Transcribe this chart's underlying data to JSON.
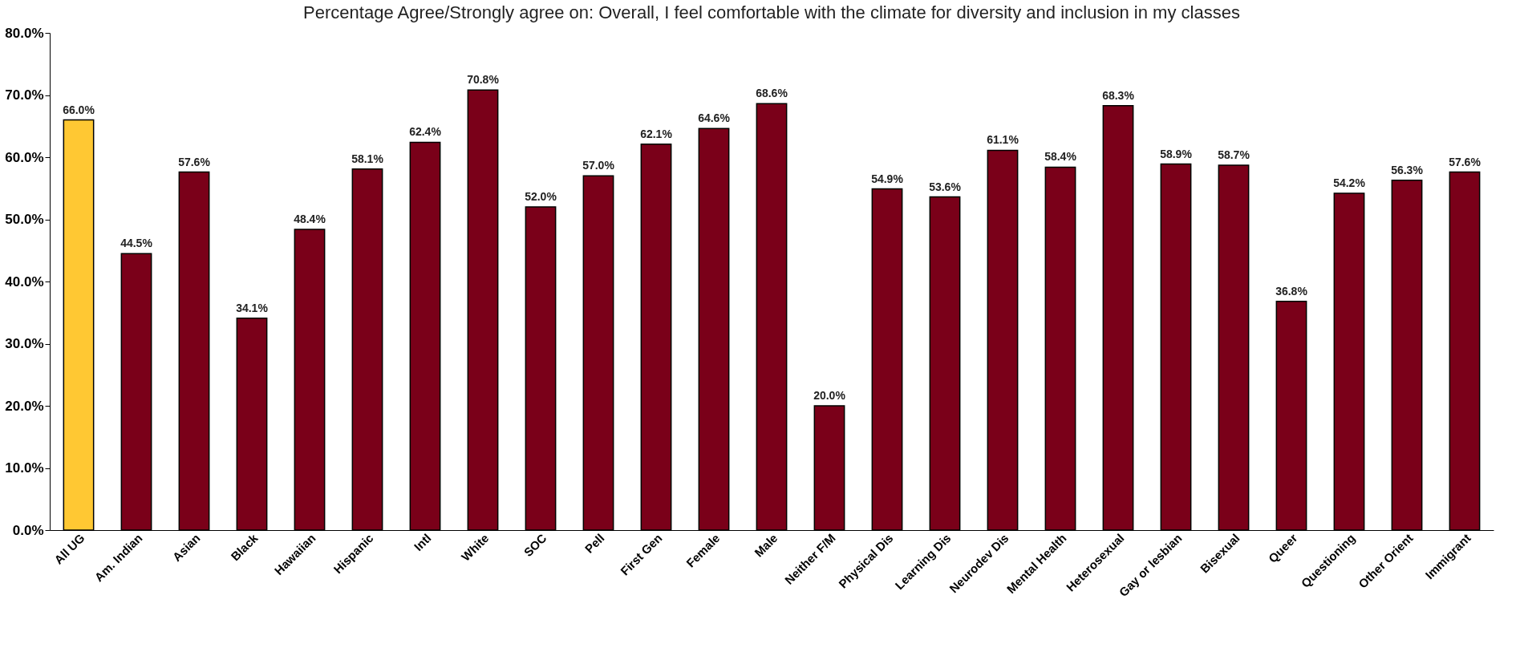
{
  "chart_data": {
    "type": "bar",
    "title": "Percentage Agree/Strongly agree on: Overall, I feel comfortable with the climate for diversity and inclusion in my classes",
    "categories": [
      "All UG",
      "Am. Indian",
      "Asian",
      "Black",
      "Hawaiian",
      "Hispanic",
      "Intl",
      "White",
      "SOC",
      "Pell",
      "First Gen",
      "Female",
      "Male",
      "Neither F/M",
      "Physical Dis",
      "Learning Dis",
      "Neurodev Dis",
      "Mental Health",
      "Heterosexual",
      "Gay or lesbian",
      "Bisexual",
      "Queer",
      "Questioning",
      "Other Orient",
      "Immigrant"
    ],
    "values": [
      66.0,
      44.5,
      57.6,
      34.1,
      48.4,
      58.1,
      62.4,
      70.8,
      52.0,
      57.0,
      62.1,
      64.6,
      68.6,
      20.0,
      54.9,
      53.6,
      61.1,
      58.4,
      68.3,
      58.9,
      58.7,
      36.8,
      54.2,
      56.3,
      57.6
    ],
    "value_labels": [
      "66.0%",
      "44.5%",
      "57.6%",
      "34.1%",
      "48.4%",
      "58.1%",
      "62.4%",
      "70.8%",
      "52.0%",
      "57.0%",
      "62.1%",
      "64.6%",
      "68.6%",
      "20.0%",
      "54.9%",
      "53.6%",
      "61.1%",
      "58.4%",
      "68.3%",
      "58.9%",
      "58.7%",
      "36.8%",
      "54.2%",
      "56.3%",
      "57.6%"
    ],
    "colors": [
      "#ffc833",
      "#7a0019",
      "#7a0019",
      "#7a0019",
      "#7a0019",
      "#7a0019",
      "#7a0019",
      "#7a0019",
      "#7a0019",
      "#7a0019",
      "#7a0019",
      "#7a0019",
      "#7a0019",
      "#7a0019",
      "#7a0019",
      "#7a0019",
      "#7a0019",
      "#7a0019",
      "#7a0019",
      "#7a0019",
      "#7a0019",
      "#7a0019",
      "#7a0019",
      "#7a0019",
      "#7a0019"
    ],
    "ylim": [
      0,
      80
    ],
    "yticks": [
      {
        "value": 0,
        "label": "0.0%"
      },
      {
        "value": 10,
        "label": "10.0%"
      },
      {
        "value": 20,
        "label": "20.0%"
      },
      {
        "value": 30,
        "label": "30.0%"
      },
      {
        "value": 40,
        "label": "40.0%"
      },
      {
        "value": 50,
        "label": "50.0%"
      },
      {
        "value": 60,
        "label": "60.0%"
      },
      {
        "value": 70,
        "label": "70.0%"
      },
      {
        "value": 80,
        "label": "80.0%"
      }
    ],
    "grid": false,
    "legend": false
  }
}
